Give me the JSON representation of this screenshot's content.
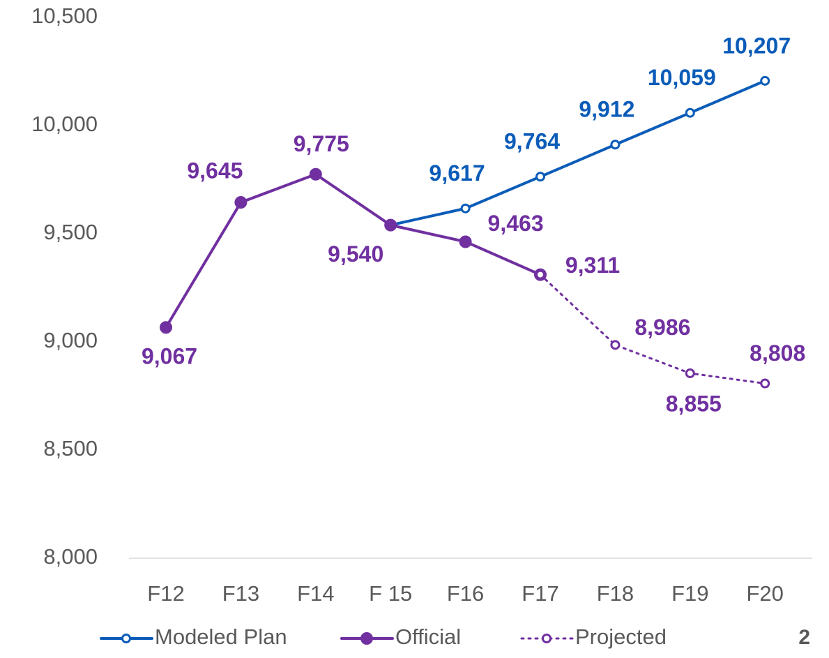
{
  "chart_data": {
    "type": "line",
    "categories": [
      "F12",
      "F13",
      "F14",
      "F 15",
      "F16",
      "F17",
      "F18",
      "F19",
      "F20"
    ],
    "series": [
      {
        "name": "Modeled Plan",
        "color": "#0b5cb8",
        "style": "solid",
        "marker": "open",
        "values": [
          null,
          null,
          null,
          9540,
          9617,
          9764,
          9912,
          10059,
          10207
        ],
        "value_labels": [
          null,
          null,
          null,
          null,
          "9,617",
          "9,764",
          "9,912",
          "10,059",
          "10,207"
        ]
      },
      {
        "name": "Official",
        "color": "#7030a0",
        "style": "solid",
        "marker": "filled",
        "values": [
          9067,
          9645,
          9775,
          9540,
          9463,
          9311,
          null,
          null,
          null
        ],
        "value_labels": [
          "9,067",
          "9,645",
          "9,775",
          "9,540",
          "9,463",
          "9,311",
          null,
          null,
          null
        ]
      },
      {
        "name": "Projected",
        "color": "#7030a0",
        "style": "dotted",
        "marker": "open",
        "values": [
          null,
          null,
          null,
          null,
          null,
          9311,
          8986,
          8855,
          8808
        ],
        "value_labels": [
          null,
          null,
          null,
          null,
          null,
          null,
          "8,986",
          "8,855",
          "8,808"
        ]
      }
    ],
    "ylim": [
      8000,
      10500
    ],
    "yticks": [
      {
        "value": 8000,
        "label": "8,000"
      },
      {
        "value": 8500,
        "label": "8,500"
      },
      {
        "value": 9000,
        "label": "9,000"
      },
      {
        "value": 9500,
        "label": "9,500"
      },
      {
        "value": 10000,
        "label": "10,000"
      },
      {
        "value": 10500,
        "label": "10,500"
      }
    ],
    "grid": false,
    "legend": "bottom",
    "page_number": "2"
  }
}
